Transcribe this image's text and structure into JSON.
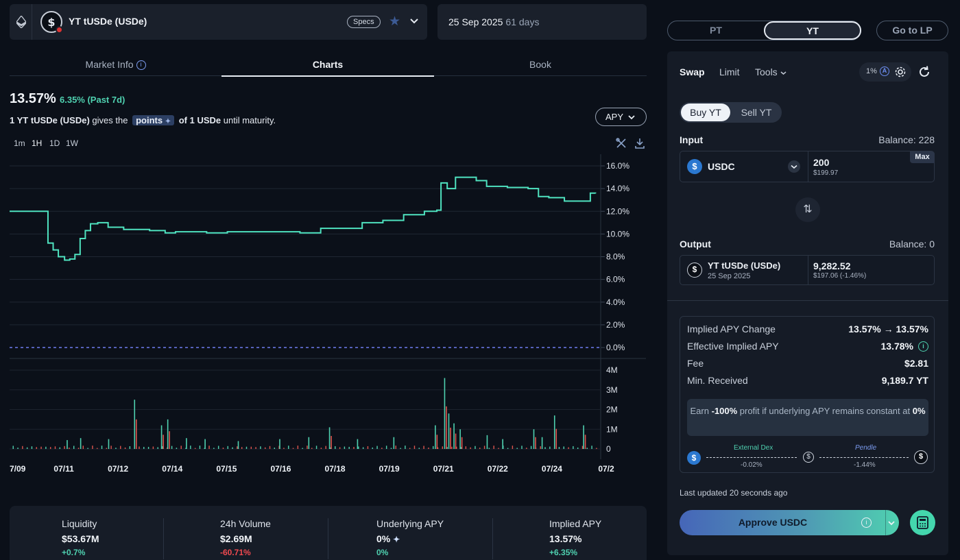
{
  "market": {
    "name": "YT tUSDe (USDe)",
    "specs_label": "Specs",
    "maturity_date": "25 Sep 2025",
    "days_left": "61 days"
  },
  "tabs": [
    {
      "label": "Market Info",
      "active": false
    },
    {
      "label": "Charts",
      "active": true
    },
    {
      "label": "Book",
      "active": false
    }
  ],
  "summary": {
    "apy": "13.57%",
    "apy_change": "6.35% (Past 7d)",
    "desc_prefix": "1 YT tUSDe (USDe)",
    "desc_mid": "gives the",
    "points_label": "points",
    "desc_suffix_bold": "of 1 USDe",
    "desc_suffix": "until maturity."
  },
  "chart_controls": {
    "metric_select": "APY",
    "timeframes": [
      "1m",
      "1H",
      "1D",
      "1W"
    ]
  },
  "chart_data": {
    "type": "line",
    "x_tick_labels": [
      "7/09",
      "07/11",
      "07/12",
      "07/14",
      "07/15",
      "07/16",
      "07/18",
      "07/19",
      "07/21",
      "07/22",
      "07/24",
      "07/2"
    ],
    "y_tick_labels": [
      "16.0%",
      "14.0%",
      "12.0%",
      "10.0%",
      "8.0%",
      "6.0%",
      "4.0%",
      "2.0%",
      "0.0%"
    ],
    "ylim": [
      0,
      16
    ],
    "series": [
      {
        "name": "Implied APY",
        "color": "#4fe3c0",
        "points": [
          [
            0,
            12.0
          ],
          [
            3.5,
            12.0
          ],
          [
            3.7,
            9.2
          ],
          [
            4.2,
            8.6
          ],
          [
            4.7,
            8.0
          ],
          [
            5.3,
            7.7
          ],
          [
            5.8,
            7.8
          ],
          [
            6.3,
            8.2
          ],
          [
            6.8,
            9.6
          ],
          [
            7.3,
            10.3
          ],
          [
            7.8,
            10.9
          ],
          [
            8.5,
            11.0
          ],
          [
            9.5,
            10.6
          ],
          [
            11,
            10.4
          ],
          [
            13.5,
            10.3
          ],
          [
            15,
            10.1
          ],
          [
            16,
            10.2
          ],
          [
            19,
            10.1
          ],
          [
            21,
            10.2
          ],
          [
            24,
            10.2
          ],
          [
            28,
            10.1
          ],
          [
            30,
            10.5
          ],
          [
            34,
            11.0
          ],
          [
            36,
            11.2
          ],
          [
            38,
            11.7
          ],
          [
            40,
            12.0
          ],
          [
            41.2,
            12.1
          ],
          [
            41.6,
            14.5
          ],
          [
            42.2,
            14.0
          ],
          [
            43,
            15.0
          ],
          [
            45,
            14.7
          ],
          [
            46,
            14.2
          ],
          [
            48,
            14.1
          ],
          [
            50,
            14.0
          ],
          [
            51,
            13.3
          ],
          [
            52,
            13.2
          ],
          [
            53.5,
            12.9
          ],
          [
            55,
            12.9
          ],
          [
            56,
            13.6
          ],
          [
            56.5,
            13.57
          ]
        ]
      }
    ],
    "volume_axis_labels": [
      "4M",
      "3M",
      "2M",
      "1M",
      "0"
    ],
    "volume_ylim": [
      0,
      4
    ],
    "volume_bars": [
      {
        "t": 5.5,
        "v": 0.45
      },
      {
        "t": 6.8,
        "v": 0.55
      },
      {
        "t": 9.5,
        "v": 0.5
      },
      {
        "t": 12.0,
        "v": 2.5
      },
      {
        "t": 14.6,
        "v": 1.2
      },
      {
        "t": 15.2,
        "v": 1.5
      },
      {
        "t": 17.0,
        "v": 0.55
      },
      {
        "t": 18.8,
        "v": 0.5
      },
      {
        "t": 22.0,
        "v": 0.4
      },
      {
        "t": 26.0,
        "v": 0.5
      },
      {
        "t": 28.8,
        "v": 0.6
      },
      {
        "t": 30.8,
        "v": 1.1
      },
      {
        "t": 33.5,
        "v": 0.5
      },
      {
        "t": 37.0,
        "v": 0.6
      },
      {
        "t": 41.0,
        "v": 1.2
      },
      {
        "t": 41.9,
        "v": 3.6
      },
      {
        "t": 42.3,
        "v": 1.8
      },
      {
        "t": 42.8,
        "v": 1.3
      },
      {
        "t": 43.4,
        "v": 1.0
      },
      {
        "t": 46.0,
        "v": 0.7
      },
      {
        "t": 47.5,
        "v": 0.5
      },
      {
        "t": 50.5,
        "v": 1.0
      },
      {
        "t": 51.3,
        "v": 0.6
      },
      {
        "t": 52.5,
        "v": 1.7
      },
      {
        "t": 55.3,
        "v": 1.2
      }
    ],
    "baseline_value": 0.0,
    "grid": true
  },
  "stats": [
    {
      "label": "Liquidity",
      "value": "$53.67M",
      "change": "+0.7%",
      "change_color": "#4fd1b0"
    },
    {
      "label": "24h Volume",
      "value": "$2.69M",
      "change": "-60.71%",
      "change_color": "#f0494f"
    },
    {
      "label": "Underlying APY",
      "value": "0%",
      "change": "0%",
      "change_color": "#4fd1b0"
    },
    {
      "label": "Implied APY",
      "value": "13.57%",
      "change": "+6.35%",
      "change_color": "#4fd1b0"
    }
  ],
  "right": {
    "pt_label": "PT",
    "yt_label": "YT",
    "go_lp_label": "Go to LP",
    "panel_tabs": [
      "Swap",
      "Limit",
      "Tools"
    ],
    "slippage": "1%",
    "buy_label": "Buy YT",
    "sell_label": "Sell YT",
    "input_label": "Input",
    "input_balance": "Balance: 228",
    "input_token": "USDC",
    "input_amount": "200",
    "input_usd": "$199.97",
    "max_label": "Max",
    "output_label": "Output",
    "output_balance": "Balance: 0",
    "output_token": "YT tUSDe (USDe)",
    "output_token_date": "25 Sep 2025",
    "output_amount": "9,282.52",
    "output_usd": "$197.06 (-1.46%)",
    "details": [
      {
        "key": "Implied APY Change",
        "value": "13.57% → 13.57%"
      },
      {
        "key": "Effective Implied APY",
        "value": "13.78%"
      },
      {
        "key": "Fee",
        "value": "$2.81"
      },
      {
        "key": "Min. Received",
        "value": "9,189.7 YT"
      }
    ],
    "earn_prefix": "Earn",
    "earn_pct": "-100%",
    "earn_mid": "profit if underlying APY remains constant at",
    "earn_zero": "0%",
    "route_left_label": "External Dex",
    "route_left_pct": "-0.02%",
    "route_right_label": "Pendle",
    "route_right_pct": "-1.44%",
    "last_updated": "Last updated 20 seconds ago",
    "approve_label": "Approve USDC"
  }
}
